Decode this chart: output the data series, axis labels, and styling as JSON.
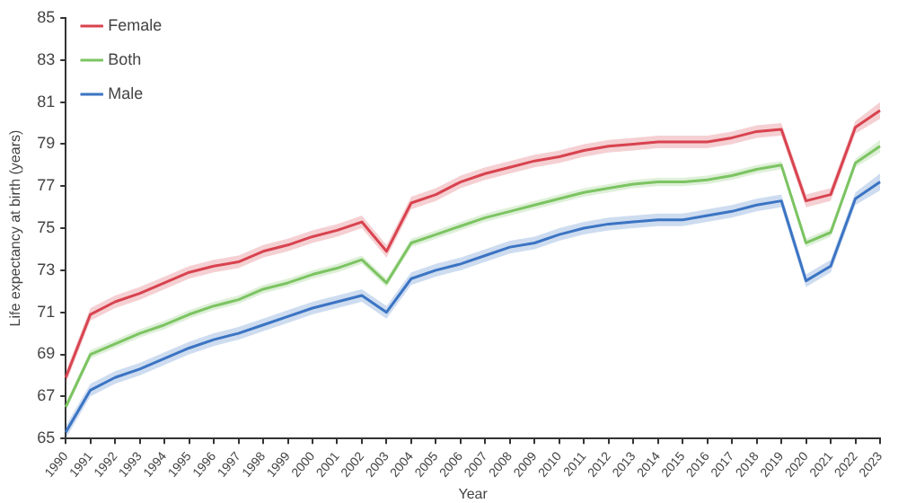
{
  "chart_data": {
    "type": "line",
    "xlabel": "Year",
    "ylabel": "Life expectancy at birth (years)",
    "categories": [
      "1990",
      "1991",
      "1992",
      "1993",
      "1994",
      "1995",
      "1996",
      "1997",
      "1998",
      "1999",
      "2000",
      "2001",
      "2002",
      "2003",
      "2004",
      "2005",
      "2006",
      "2007",
      "2008",
      "2009",
      "2010",
      "2011",
      "2012",
      "2013",
      "2014",
      "2015",
      "2016",
      "2017",
      "2018",
      "2019",
      "2020",
      "2021",
      "2022",
      "2023"
    ],
    "series": [
      {
        "name": "Female",
        "color": "#d9434f",
        "values": [
          67.9,
          70.9,
          71.5,
          71.9,
          72.4,
          72.9,
          73.2,
          73.4,
          73.9,
          74.2,
          74.6,
          74.9,
          75.3,
          73.9,
          76.2,
          76.6,
          77.2,
          77.6,
          77.9,
          78.2,
          78.4,
          78.7,
          78.9,
          79.0,
          79.1,
          79.1,
          79.1,
          79.3,
          79.6,
          79.7,
          76.3,
          76.6,
          79.8,
          80.6
        ],
        "lower": [
          67.6,
          70.6,
          71.2,
          71.6,
          72.1,
          72.6,
          72.9,
          73.1,
          73.6,
          73.9,
          74.3,
          74.6,
          75.0,
          73.6,
          75.9,
          76.3,
          76.9,
          77.3,
          77.6,
          77.9,
          78.1,
          78.4,
          78.6,
          78.7,
          78.8,
          78.8,
          78.8,
          79.0,
          79.3,
          79.4,
          76.0,
          76.3,
          79.5,
          80.2
        ],
        "upper": [
          68.2,
          71.2,
          71.8,
          72.2,
          72.7,
          73.2,
          73.5,
          73.7,
          74.2,
          74.5,
          74.9,
          75.2,
          75.6,
          74.2,
          76.5,
          76.9,
          77.5,
          77.9,
          78.2,
          78.5,
          78.7,
          79.0,
          79.2,
          79.3,
          79.4,
          79.4,
          79.4,
          79.6,
          79.9,
          80.0,
          76.6,
          76.9,
          80.1,
          81.0
        ]
      },
      {
        "name": "Both",
        "color": "#7cc462",
        "values": [
          66.5,
          69.0,
          69.5,
          70.0,
          70.4,
          70.9,
          71.3,
          71.6,
          72.1,
          72.4,
          72.8,
          73.1,
          73.5,
          72.4,
          74.3,
          74.7,
          75.1,
          75.5,
          75.8,
          76.1,
          76.4,
          76.7,
          76.9,
          77.1,
          77.2,
          77.2,
          77.3,
          77.5,
          77.8,
          78.0,
          74.3,
          74.8,
          78.1,
          78.9
        ],
        "lower": [
          66.3,
          68.8,
          69.3,
          69.8,
          70.2,
          70.7,
          71.1,
          71.4,
          71.9,
          72.2,
          72.6,
          72.9,
          73.3,
          72.2,
          74.1,
          74.5,
          74.9,
          75.3,
          75.6,
          75.9,
          76.2,
          76.5,
          76.7,
          76.9,
          77.0,
          77.0,
          77.1,
          77.3,
          77.6,
          77.8,
          74.1,
          74.6,
          77.9,
          78.6
        ],
        "upper": [
          66.7,
          69.2,
          69.7,
          70.2,
          70.6,
          71.1,
          71.5,
          71.8,
          72.3,
          72.6,
          73.0,
          73.3,
          73.7,
          72.6,
          74.5,
          74.9,
          75.3,
          75.7,
          76.0,
          76.3,
          76.6,
          76.9,
          77.1,
          77.3,
          77.4,
          77.4,
          77.5,
          77.7,
          78.0,
          78.2,
          74.5,
          75.0,
          78.3,
          79.2
        ]
      },
      {
        "name": "Male",
        "color": "#3b74c3",
        "values": [
          65.3,
          67.3,
          67.9,
          68.3,
          68.8,
          69.3,
          69.7,
          70.0,
          70.4,
          70.8,
          71.2,
          71.5,
          71.8,
          71.0,
          72.6,
          73.0,
          73.3,
          73.7,
          74.1,
          74.3,
          74.7,
          75.0,
          75.2,
          75.3,
          75.4,
          75.4,
          75.6,
          75.8,
          76.1,
          76.3,
          72.5,
          73.2,
          76.4,
          77.2
        ],
        "lower": [
          65.0,
          67.0,
          67.6,
          68.0,
          68.5,
          69.0,
          69.4,
          69.7,
          70.1,
          70.5,
          70.9,
          71.2,
          71.5,
          70.7,
          72.3,
          72.7,
          73.0,
          73.4,
          73.8,
          74.0,
          74.4,
          74.7,
          74.9,
          75.0,
          75.1,
          75.1,
          75.3,
          75.5,
          75.8,
          76.0,
          72.2,
          72.9,
          76.1,
          76.8
        ],
        "upper": [
          65.6,
          67.6,
          68.2,
          68.6,
          69.1,
          69.6,
          70.0,
          70.3,
          70.7,
          71.1,
          71.5,
          71.8,
          72.1,
          71.3,
          72.9,
          73.3,
          73.6,
          74.0,
          74.4,
          74.6,
          75.0,
          75.3,
          75.5,
          75.6,
          75.7,
          75.7,
          75.9,
          76.1,
          76.4,
          76.6,
          72.8,
          73.5,
          76.7,
          77.6
        ]
      }
    ],
    "ylim": [
      65,
      85
    ],
    "yticks": [
      65,
      67,
      69,
      71,
      73,
      75,
      77,
      79,
      81,
      83,
      85
    ],
    "legend": "top left",
    "marker": "none",
    "line_style": "solid"
  }
}
